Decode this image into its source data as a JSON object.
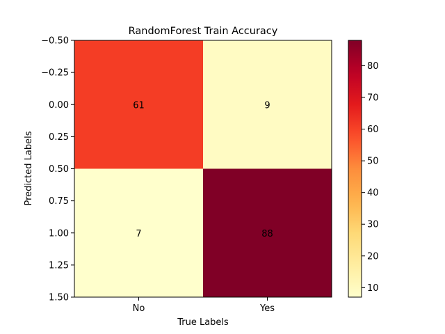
{
  "chart_data": {
    "type": "heatmap",
    "title": "RandomForest Train Accuracy",
    "xlabel": "True Labels",
    "ylabel": "Predicted Labels",
    "x_categories": [
      "No",
      "Yes"
    ],
    "y_ticks": [
      "−0.50",
      "−0.25",
      "0.00",
      "0.25",
      "0.50",
      "0.75",
      "1.00",
      "1.25",
      "1.50"
    ],
    "y_tick_values": [
      -0.5,
      -0.25,
      0,
      0.25,
      0.5,
      0.75,
      1.0,
      1.25,
      1.5
    ],
    "ylim": [
      1.5,
      -0.5
    ],
    "matrix": [
      [
        61,
        9
      ],
      [
        7,
        88
      ]
    ],
    "cell_labels": [
      [
        "61",
        "9"
      ],
      [
        "7",
        "88"
      ]
    ],
    "colormap": "YlOrRd",
    "color_range": [
      7,
      88
    ],
    "colorbar_ticks": [
      "10",
      "20",
      "30",
      "40",
      "50",
      "60",
      "70",
      "80"
    ],
    "colorbar_tick_values": [
      10,
      20,
      30,
      40,
      50,
      60,
      70,
      80
    ],
    "grid": false
  }
}
